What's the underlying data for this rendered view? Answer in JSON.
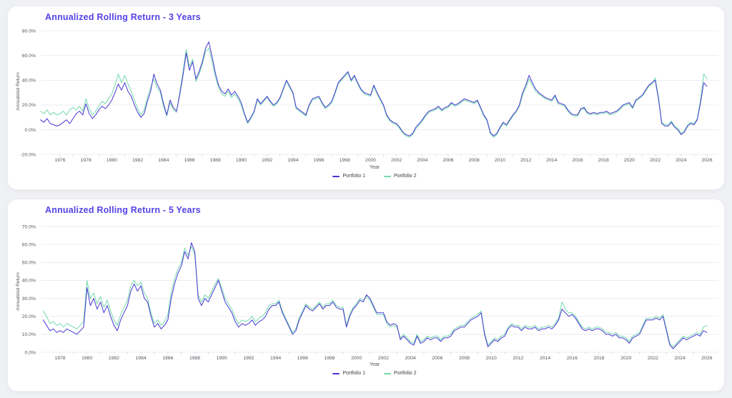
{
  "theme": {
    "page_background": "#f0f1f5",
    "card_background": "#ffffff",
    "title_color": "#5643e6",
    "grid_color": "#ebedf2",
    "tick_text_color": "#55555f",
    "portfolio1_color": "#4538d2",
    "portfolio2_color": "#74d9ab"
  },
  "chart_data": [
    {
      "type": "line",
      "title": "Annualized Rolling Return - 3 Years",
      "x_axis": {
        "label": "Year",
        "first_tick": 1976,
        "last_tick": 2026,
        "tick_interval": 2
      },
      "y_axis": {
        "label": "Annualized Return",
        "min": -20,
        "max": 80,
        "tick_interval": 20,
        "tick_format": "0.0%"
      },
      "legend_position": "bottom-center",
      "grid": true,
      "series": [
        {
          "name": "Portfolio 1",
          "color": "#4538d2",
          "x_start": 1974.5,
          "x_step": 0.25,
          "unit": "percent",
          "values": [
            8,
            6,
            9,
            5,
            4,
            3,
            4,
            6,
            8,
            5,
            9,
            13,
            15,
            12,
            21,
            13,
            9,
            12,
            16,
            19,
            17,
            20,
            24,
            30,
            37,
            32,
            38,
            31,
            27,
            20,
            14,
            10,
            13,
            23,
            31,
            45,
            37,
            32,
            21,
            12,
            24,
            18,
            15,
            28,
            44,
            62,
            48,
            55,
            41,
            47,
            55,
            66,
            71,
            59,
            46,
            36,
            31,
            29,
            33,
            28,
            31,
            27,
            22,
            13,
            6,
            10,
            15,
            25,
            21,
            24,
            27,
            23,
            20,
            22,
            26,
            33,
            40,
            35,
            30,
            18,
            16,
            14,
            12,
            20,
            25,
            26,
            27,
            22,
            18,
            20,
            23,
            30,
            38,
            41,
            44,
            47,
            40,
            44,
            38,
            33,
            30,
            29,
            28,
            36,
            30,
            25,
            20,
            12,
            8,
            6,
            5,
            2,
            -2,
            -4,
            -5,
            -3,
            2,
            5,
            8,
            12,
            15,
            16,
            17,
            19,
            16,
            18,
            19,
            22,
            20,
            21,
            23,
            25,
            24,
            23,
            22,
            24,
            18,
            12,
            8,
            -2,
            -5,
            -3,
            2,
            6,
            4,
            8,
            12,
            15,
            20,
            30,
            36,
            44,
            38,
            33,
            30,
            28,
            26,
            25,
            24,
            28,
            22,
            21,
            20,
            16,
            13,
            12,
            12,
            17,
            18,
            14,
            13,
            14,
            13,
            14,
            14,
            15,
            13,
            14,
            15,
            17,
            20,
            21,
            22,
            18,
            24,
            26,
            28,
            32,
            36,
            38,
            40,
            25,
            5,
            3,
            3,
            6,
            2,
            0,
            -4,
            -2,
            3,
            5,
            4,
            8,
            22,
            38,
            35
          ]
        },
        {
          "name": "Portfolio 2",
          "color": "#74d9ab",
          "x_start": 1974.5,
          "x_step": 0.25,
          "unit": "percent",
          "values": [
            15,
            13,
            16,
            12,
            14,
            12,
            13,
            15,
            12,
            16,
            18,
            16,
            19,
            15,
            25,
            17,
            12,
            15,
            19,
            23,
            21,
            25,
            29,
            36,
            45,
            38,
            44,
            37,
            31,
            24,
            17,
            12,
            16,
            26,
            34,
            41,
            34,
            30,
            19,
            11,
            22,
            16,
            14,
            30,
            47,
            65,
            51,
            57,
            39,
            45,
            53,
            63,
            66,
            55,
            43,
            34,
            29,
            27,
            31,
            26,
            29,
            25,
            20,
            12,
            5,
            9,
            14,
            24,
            20,
            23,
            26,
            22,
            19,
            21,
            25,
            32,
            39,
            34,
            29,
            17,
            15,
            13,
            11,
            19,
            24,
            25,
            26,
            21,
            17,
            19,
            22,
            29,
            37,
            40,
            43,
            46,
            39,
            43,
            37,
            32,
            29,
            28,
            27,
            35,
            29,
            24,
            19,
            11,
            7,
            5,
            4,
            1,
            -3,
            -5,
            -6,
            -4,
            1,
            4,
            7,
            11,
            14,
            15,
            16,
            18,
            15,
            17,
            18,
            21,
            19,
            20,
            22,
            24,
            23,
            22,
            21,
            23,
            17,
            11,
            7,
            -3,
            -6,
            -4,
            1,
            5,
            3,
            7,
            11,
            14,
            19,
            28,
            34,
            41,
            36,
            31,
            29,
            27,
            25,
            24,
            23,
            27,
            21,
            20,
            19,
            15,
            12,
            11,
            11,
            16,
            17,
            13,
            12,
            13,
            12,
            13,
            13,
            14,
            12,
            13,
            14,
            16,
            19,
            20,
            21,
            17,
            23,
            25,
            27,
            31,
            35,
            37,
            42,
            27,
            6,
            4,
            4,
            7,
            3,
            1,
            -3,
            -1,
            4,
            6,
            5,
            9,
            24,
            45,
            41
          ]
        }
      ]
    },
    {
      "type": "line",
      "title": "Annualized Rolling Return - 5 Years",
      "x_axis": {
        "label": "Year",
        "first_tick": 1978,
        "last_tick": 2026,
        "tick_interval": 2
      },
      "y_axis": {
        "label": "Annualized Return",
        "min": 0,
        "max": 70,
        "tick_interval": 10,
        "tick_format": "0.0%"
      },
      "legend_position": "bottom-center",
      "grid": true,
      "series": [
        {
          "name": "Portfolio 1",
          "color": "#4538d2",
          "x_start": 1976.75,
          "x_step": 0.25,
          "unit": "percent",
          "values": [
            18,
            15,
            12,
            13,
            11,
            12,
            11,
            13,
            12,
            11,
            10,
            12,
            14,
            36,
            26,
            30,
            24,
            28,
            22,
            26,
            20,
            15,
            12,
            18,
            22,
            26,
            34,
            38,
            34,
            37,
            30,
            28,
            20,
            14,
            16,
            13,
            15,
            18,
            30,
            38,
            44,
            48,
            56,
            52,
            61,
            56,
            30,
            26,
            30,
            28,
            32,
            36,
            40,
            34,
            28,
            25,
            22,
            17,
            14,
            16,
            15,
            16,
            18,
            15,
            17,
            18,
            20,
            24,
            26,
            26,
            28,
            22,
            18,
            14,
            10,
            12,
            18,
            22,
            26,
            24,
            23,
            25,
            27,
            24,
            26,
            26,
            28,
            25,
            24,
            24,
            14,
            20,
            24,
            26,
            29,
            28,
            32,
            30,
            26,
            22,
            22,
            22,
            17,
            15,
            16,
            15,
            7,
            9,
            7,
            5,
            4,
            9,
            5,
            6,
            8,
            7,
            8,
            8,
            6,
            8,
            8,
            9,
            12,
            13,
            14,
            14,
            16,
            18,
            19,
            20,
            22,
            10,
            3,
            5,
            7,
            6,
            8,
            9,
            13,
            15,
            14,
            14,
            12,
            14,
            13,
            13,
            14,
            12,
            13,
            13,
            14,
            13,
            15,
            18,
            24,
            22,
            20,
            21,
            19,
            16,
            13,
            12,
            13,
            12,
            13,
            13,
            12,
            10,
            10,
            9,
            10,
            8,
            8,
            7,
            5,
            8,
            9,
            10,
            14,
            18,
            18,
            18,
            19,
            18,
            20,
            12,
            4,
            2,
            4,
            6,
            8,
            7,
            8,
            9,
            10,
            9,
            12,
            11
          ]
        },
        {
          "name": "Portfolio 2",
          "color": "#74d9ab",
          "x_start": 1976.75,
          "x_step": 0.25,
          "unit": "percent",
          "values": [
            23,
            20,
            16,
            17,
            15,
            16,
            14,
            16,
            15,
            14,
            13,
            15,
            17,
            40,
            30,
            33,
            27,
            31,
            25,
            29,
            23,
            18,
            15,
            21,
            25,
            29,
            37,
            40,
            37,
            39,
            33,
            30,
            22,
            16,
            18,
            15,
            17,
            21,
            33,
            41,
            46,
            50,
            58,
            54,
            59,
            54,
            32,
            28,
            32,
            30,
            34,
            38,
            41,
            36,
            30,
            27,
            24,
            19,
            16,
            18,
            17,
            18,
            20,
            17,
            19,
            20,
            22,
            26,
            27,
            27,
            29,
            23,
            19,
            15,
            11,
            13,
            19,
            23,
            27,
            25,
            24,
            26,
            28,
            25,
            27,
            27,
            29,
            26,
            25,
            25,
            15,
            21,
            25,
            27,
            30,
            29,
            31,
            29,
            25,
            21,
            21,
            21,
            16,
            14,
            15,
            14,
            8,
            10,
            8,
            6,
            5,
            10,
            6,
            7,
            9,
            8,
            9,
            9,
            7,
            9,
            9,
            10,
            13,
            14,
            15,
            15,
            17,
            19,
            20,
            21,
            23,
            11,
            4,
            6,
            8,
            7,
            9,
            10,
            14,
            16,
            15,
            15,
            13,
            15,
            14,
            14,
            15,
            13,
            14,
            14,
            15,
            14,
            16,
            19,
            28,
            24,
            22,
            22,
            20,
            17,
            14,
            13,
            14,
            13,
            14,
            14,
            13,
            11,
            11,
            10,
            11,
            9,
            9,
            8,
            6,
            9,
            10,
            11,
            15,
            19,
            19,
            19,
            20,
            19,
            21,
            13,
            5,
            3,
            5,
            7,
            9,
            8,
            9,
            10,
            11,
            10,
            14,
            15
          ]
        }
      ]
    }
  ]
}
